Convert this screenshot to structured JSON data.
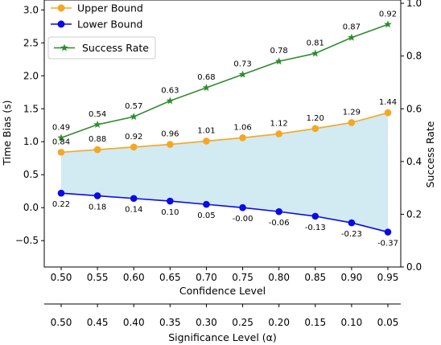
{
  "chart_data": {
    "type": "line",
    "x": [
      0.5,
      0.55,
      0.6,
      0.65,
      0.7,
      0.75,
      0.8,
      0.85,
      0.9,
      0.95
    ],
    "x_tick_labels": [
      "0.50",
      "0.55",
      "0.60",
      "0.65",
      "0.70",
      "0.75",
      "0.80",
      "0.85",
      "0.90",
      "0.95"
    ],
    "secondary_x_tick_labels": [
      "0.50",
      "0.45",
      "0.40",
      "0.35",
      "0.30",
      "0.25",
      "0.20",
      "0.15",
      "0.10",
      "0.05"
    ],
    "xlabel": "Confidence Level",
    "secondary_xlabel": "Significance Level (α)",
    "ylabel": "Time Bias (s)",
    "ylim": [
      -0.9,
      3.15
    ],
    "y_ticks": [
      -0.5,
      0.0,
      0.5,
      1.0,
      1.5,
      2.0,
      2.5,
      3.0
    ],
    "y_tick_labels": [
      "−0.5",
      "0.0",
      "0.5",
      "1.0",
      "1.5",
      "2.0",
      "2.5",
      "3.0"
    ],
    "y2label": "Success Rate",
    "y2lim": [
      0.0,
      1.0125
    ],
    "y2_ticks": [
      0.0,
      0.2,
      0.4,
      0.6,
      0.8,
      1.0
    ],
    "y2_tick_labels": [
      "0.0",
      "0.2",
      "0.4",
      "0.6",
      "0.8",
      "1.0"
    ],
    "grid": false,
    "series": [
      {
        "name": "Upper Bound",
        "axis": "left",
        "color": "#f5a623",
        "marker": "circle",
        "values": [
          0.84,
          0.88,
          0.92,
          0.96,
          1.01,
          1.06,
          1.12,
          1.2,
          1.29,
          1.44
        ],
        "labels": [
          "0.84",
          "0.88",
          "0.92",
          "0.96",
          "1.01",
          "1.06",
          "1.12",
          "1.20",
          "1.29",
          "1.44"
        ]
      },
      {
        "name": "Lower Bound",
        "axis": "left",
        "color": "#0a0ae8",
        "marker": "circle",
        "values": [
          0.22,
          0.18,
          0.14,
          0.1,
          0.05,
          -0.0,
          -0.06,
          -0.13,
          -0.23,
          -0.37
        ],
        "labels": [
          "0.22",
          "0.18",
          "0.14",
          "0.10",
          "0.05",
          "-0.00",
          "-0.06",
          "-0.13",
          "-0.23",
          "-0.37"
        ]
      },
      {
        "name": "Success Rate",
        "axis": "right",
        "color": "#2e8b2e",
        "marker": "star",
        "values": [
          0.49,
          0.54,
          0.57,
          0.63,
          0.68,
          0.73,
          0.78,
          0.81,
          0.87,
          0.92
        ],
        "labels": [
          "0.49",
          "0.54",
          "0.57",
          "0.63",
          "0.68",
          "0.73",
          "0.78",
          "0.81",
          "0.87",
          "0.92"
        ]
      }
    ],
    "band": {
      "between": [
        "Lower Bound",
        "Upper Bound"
      ],
      "color": "#add8e6"
    },
    "legend": [
      {
        "series": "Upper Bound",
        "placement": "top-left"
      },
      {
        "series": "Lower Bound",
        "placement": "top-left"
      },
      {
        "series": "Success Rate",
        "placement": "upper-left"
      }
    ]
  }
}
